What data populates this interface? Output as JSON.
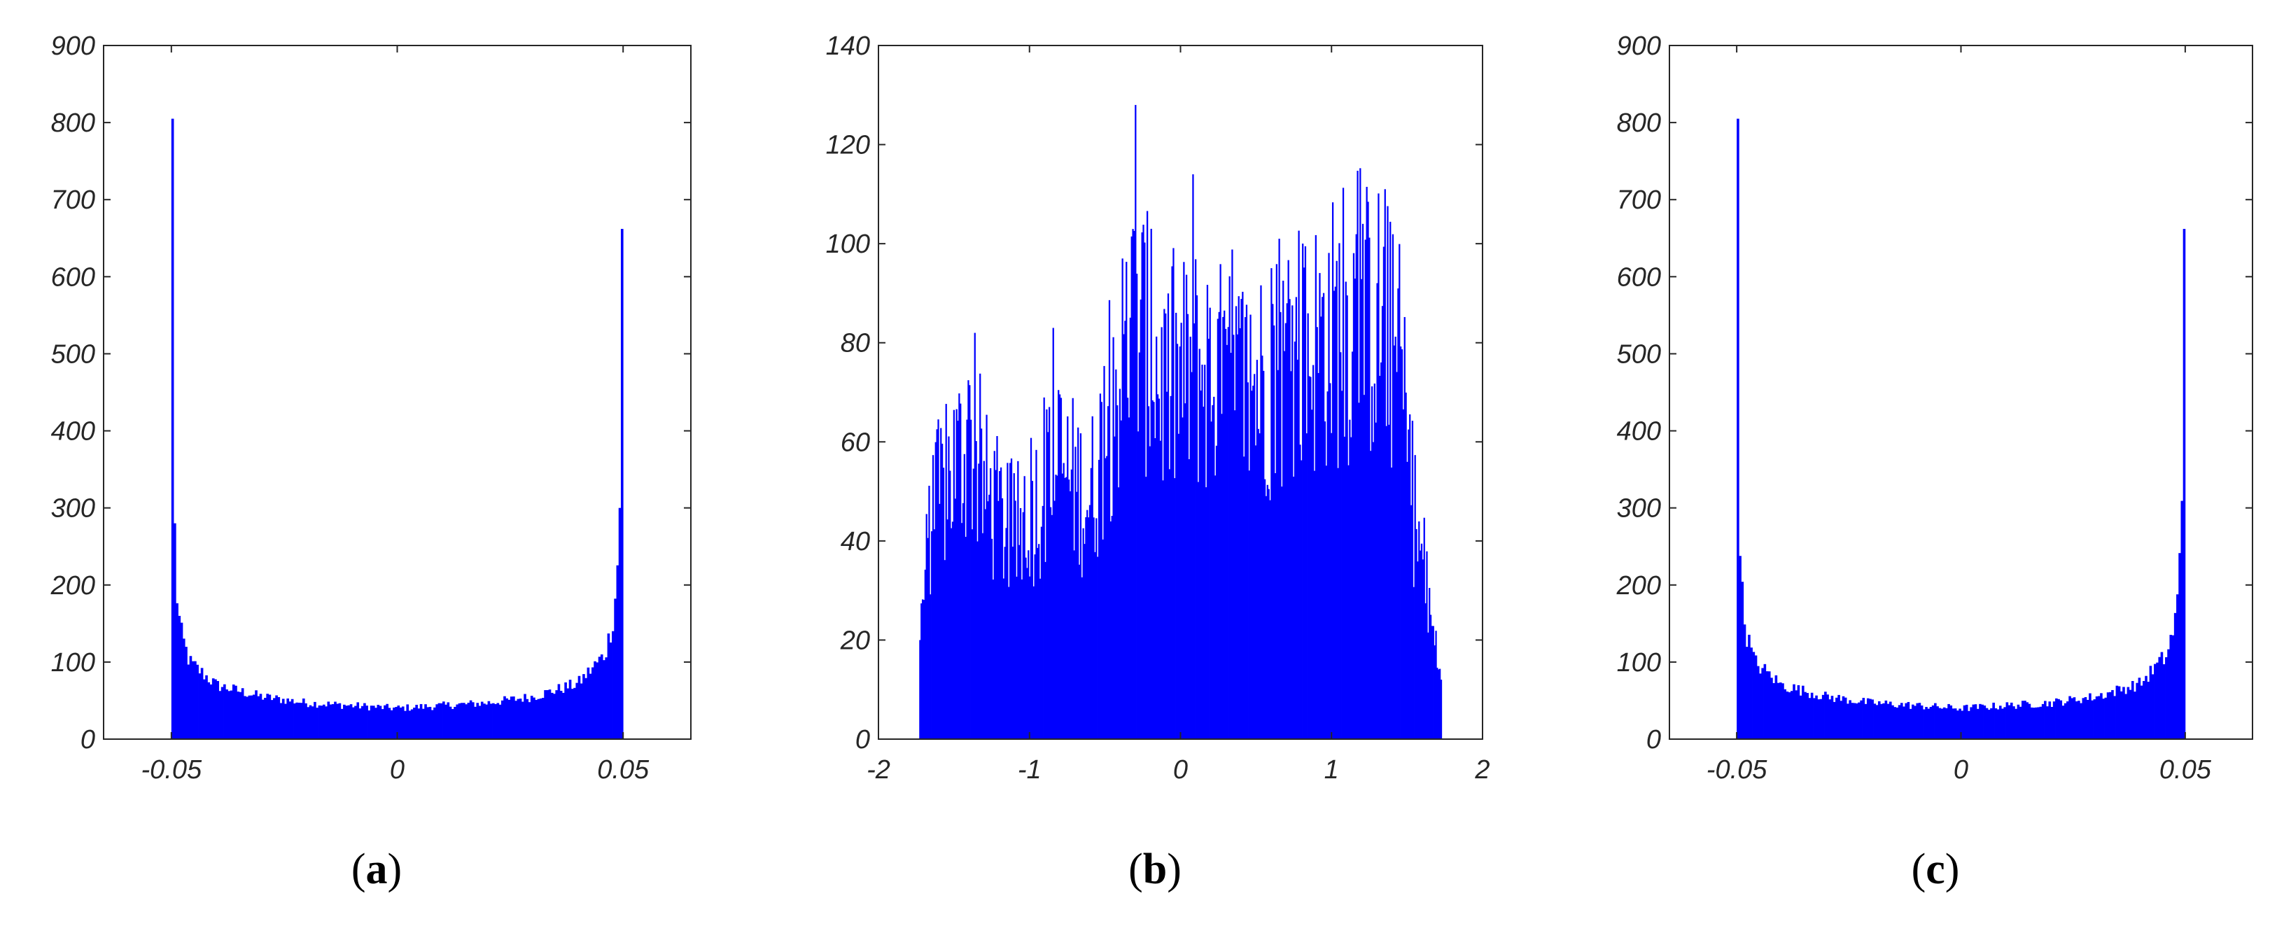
{
  "figure": {
    "panel_labels": [
      "a",
      "b",
      "c"
    ]
  },
  "chart_data": [
    {
      "type": "bar",
      "panel": "a",
      "title": "",
      "xlabel": "",
      "ylabel": "",
      "xlim": [
        -0.065,
        0.065
      ],
      "ylim": [
        0,
        900
      ],
      "xticks": [
        -0.05,
        0,
        0.05
      ],
      "xtick_labels": [
        "-0.05",
        "0",
        "0.05"
      ],
      "yticks": [
        0,
        100,
        200,
        300,
        400,
        500,
        600,
        700,
        800,
        900
      ],
      "ytick_labels": [
        "0",
        "100",
        "200",
        "300",
        "400",
        "500",
        "600",
        "700",
        "800",
        "900"
      ],
      "bar_color": "#0000ff",
      "bins": {
        "start": -0.05,
        "end": 0.05,
        "count": 200
      },
      "description_points": [
        {
          "x": -0.05,
          "y": 805
        },
        {
          "x": -0.0495,
          "y": 340
        },
        {
          "x": -0.049,
          "y": 200
        },
        {
          "x": -0.048,
          "y": 140
        },
        {
          "x": -0.046,
          "y": 100
        },
        {
          "x": -0.04,
          "y": 70
        },
        {
          "x": -0.03,
          "y": 55
        },
        {
          "x": -0.02,
          "y": 47
        },
        {
          "x": 0,
          "y": 40
        },
        {
          "x": 0.02,
          "y": 47
        },
        {
          "x": 0.03,
          "y": 55
        },
        {
          "x": 0.04,
          "y": 72
        },
        {
          "x": 0.046,
          "y": 110
        },
        {
          "x": 0.048,
          "y": 160
        },
        {
          "x": 0.049,
          "y": 250
        },
        {
          "x": 0.0495,
          "y": 370
        },
        {
          "x": 0.05,
          "y": 662
        }
      ]
    },
    {
      "type": "bar",
      "panel": "b",
      "title": "",
      "xlabel": "",
      "ylabel": "",
      "xlim": [
        -2,
        2
      ],
      "ylim": [
        0,
        140
      ],
      "xticks": [
        -2,
        -1,
        0,
        1,
        2
      ],
      "xtick_labels": [
        "-2",
        "-1",
        "0",
        "1",
        "2"
      ],
      "yticks": [
        0,
        20,
        40,
        60,
        80,
        100,
        120,
        140
      ],
      "ytick_labels": [
        "0",
        "20",
        "40",
        "60",
        "80",
        "100",
        "120",
        "140"
      ],
      "bar_color": "#0000ff",
      "bins": {
        "start": -1.73,
        "end": 1.73,
        "count": 400
      },
      "description_points": [
        {
          "x": -1.73,
          "y": 20
        },
        {
          "x": -1.65,
          "y": 45
        },
        {
          "x": -1.5,
          "y": 55
        },
        {
          "x": -1.4,
          "y": 60
        },
        {
          "x": -1.3,
          "y": 50
        },
        {
          "x": -1.1,
          "y": 40
        },
        {
          "x": -0.95,
          "y": 48
        },
        {
          "x": -0.8,
          "y": 55
        },
        {
          "x": -0.6,
          "y": 48
        },
        {
          "x": -0.45,
          "y": 68
        },
        {
          "x": -0.3,
          "y": 85
        },
        {
          "x": -0.1,
          "y": 70
        },
        {
          "x": 0.1,
          "y": 75
        },
        {
          "x": 0.4,
          "y": 70
        },
        {
          "x": 0.7,
          "y": 75
        },
        {
          "x": 1.0,
          "y": 82
        },
        {
          "x": 1.3,
          "y": 85
        },
        {
          "x": 1.45,
          "y": 75
        },
        {
          "x": 1.55,
          "y": 45
        },
        {
          "x": 1.65,
          "y": 25
        },
        {
          "x": 1.73,
          "y": 12
        }
      ],
      "peaks": [
        {
          "x": -0.3,
          "y": 128
        },
        {
          "x": 0.08,
          "y": 114
        },
        {
          "x": 1.35,
          "y": 111
        },
        {
          "x": 1.2,
          "y": 104
        },
        {
          "x": -0.2,
          "y": 103
        },
        {
          "x": 0.65,
          "y": 101
        },
        {
          "x": -0.85,
          "y": 83
        },
        {
          "x": -1.37,
          "y": 82
        }
      ]
    },
    {
      "type": "bar",
      "panel": "c",
      "title": "",
      "xlabel": "",
      "ylabel": "",
      "xlim": [
        -0.065,
        0.065
      ],
      "ylim": [
        0,
        900
      ],
      "xticks": [
        -0.05,
        0,
        0.05
      ],
      "xtick_labels": [
        "-0.05",
        "0",
        "0.05"
      ],
      "yticks": [
        0,
        100,
        200,
        300,
        400,
        500,
        600,
        700,
        800,
        900
      ],
      "ytick_labels": [
        "0",
        "100",
        "200",
        "300",
        "400",
        "500",
        "600",
        "700",
        "800",
        "900"
      ],
      "bar_color": "#0000ff",
      "bins": {
        "start": -0.05,
        "end": 0.05,
        "count": 200
      },
      "description_points": [
        {
          "x": -0.05,
          "y": 805
        },
        {
          "x": -0.0495,
          "y": 340
        },
        {
          "x": -0.049,
          "y": 200
        },
        {
          "x": -0.048,
          "y": 140
        },
        {
          "x": -0.046,
          "y": 100
        },
        {
          "x": -0.04,
          "y": 70
        },
        {
          "x": -0.03,
          "y": 55
        },
        {
          "x": -0.02,
          "y": 47
        },
        {
          "x": 0,
          "y": 40
        },
        {
          "x": 0.02,
          "y": 47
        },
        {
          "x": 0.03,
          "y": 55
        },
        {
          "x": 0.04,
          "y": 72
        },
        {
          "x": 0.046,
          "y": 110
        },
        {
          "x": 0.048,
          "y": 160
        },
        {
          "x": 0.049,
          "y": 250
        },
        {
          "x": 0.0495,
          "y": 370
        },
        {
          "x": 0.05,
          "y": 662
        }
      ]
    }
  ]
}
